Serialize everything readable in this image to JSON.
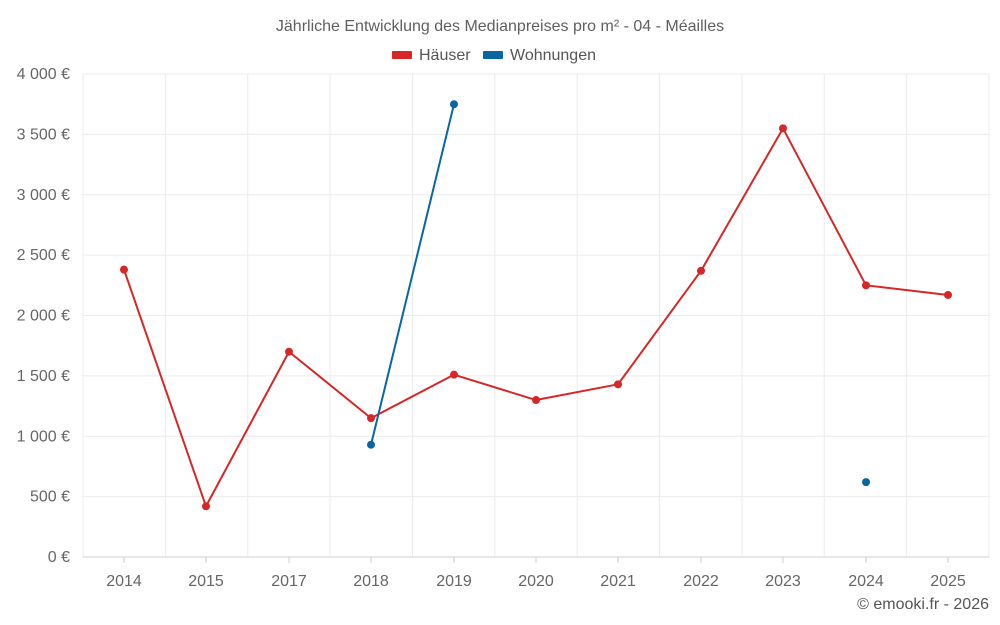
{
  "colors": {
    "houses": "#d62728",
    "apartments": "#0a66a3",
    "grid": "#ececec",
    "axis": "#cfcfcf"
  },
  "chart_data": {
    "type": "line",
    "title": "Jährliche Entwicklung des Medianpreises pro m² - 04 - Méailles",
    "categories": [
      "2014",
      "2015",
      "2017",
      "2018",
      "2019",
      "2020",
      "2021",
      "2022",
      "2023",
      "2024",
      "2025"
    ],
    "series": [
      {
        "name": "Häuser",
        "color": "#d62728",
        "values": [
          2380,
          420,
          1700,
          1150,
          1510,
          1300,
          1430,
          2370,
          3550,
          2250,
          2170
        ]
      },
      {
        "name": "Wohnungen",
        "color": "#0a66a3",
        "values": [
          null,
          null,
          null,
          930,
          3750,
          null,
          null,
          null,
          null,
          620,
          null
        ]
      }
    ],
    "ylim": [
      0,
      4000
    ],
    "y_ticks": [
      0,
      500,
      1000,
      1500,
      2000,
      2500,
      3000,
      3500,
      4000
    ],
    "y_tick_labels": [
      "0 €",
      "500 €",
      "1 000 €",
      "1 500 €",
      "2 000 €",
      "2 500 €",
      "3 000 €",
      "3 500 €",
      "4 000 €"
    ],
    "xlabel": "",
    "ylabel": "",
    "grid": true,
    "legend": "top-center",
    "source": "© emooki.fr - 2026"
  }
}
